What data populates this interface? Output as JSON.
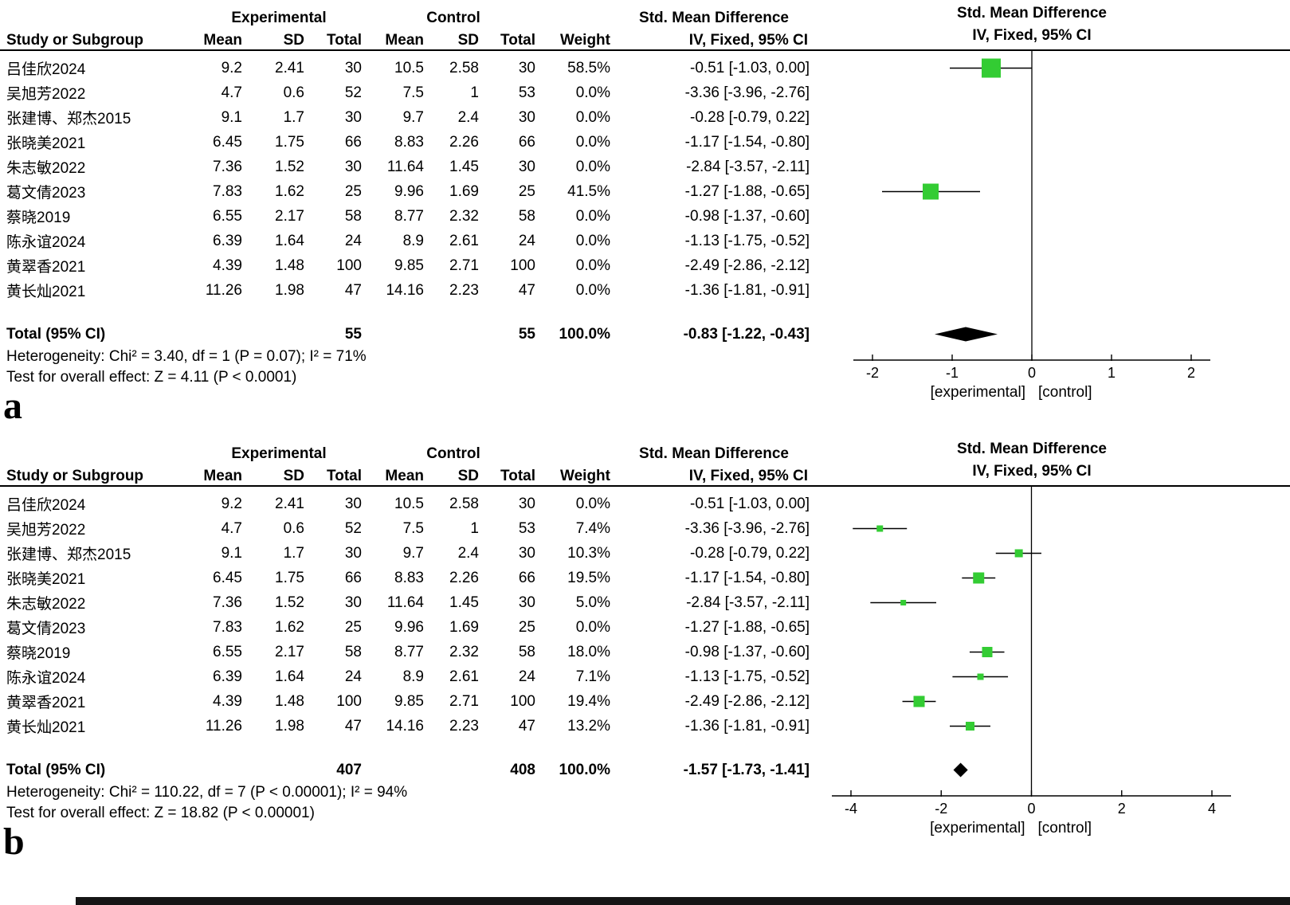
{
  "columns": {
    "study": "Study or Subgroup",
    "experimental": "Experimental",
    "control": "Control",
    "mean": "Mean",
    "sd": "SD",
    "total": "Total",
    "weight": "Weight",
    "smd": "Std. Mean Difference",
    "iv": "IV, Fixed, 95% CI"
  },
  "marker_color": "#33cc33",
  "chart_data": {
    "type": "forest",
    "effect_measure": "Std. Mean Difference",
    "model": "IV, Fixed, 95% CI",
    "panels": [
      {
        "panel_label": "a",
        "xlim": [
          -2.5,
          2.5
        ],
        "studies": [
          {
            "name": "吕佳欣2024",
            "exp_mean": "9.2",
            "exp_sd": "2.41",
            "exp_total": "30",
            "ctl_mean": "10.5",
            "ctl_sd": "2.58",
            "ctl_total": "30",
            "weight": "58.5%",
            "weight_pct": 58.5,
            "ci_text": "-0.51 [-1.03, 0.00]",
            "est": -0.51,
            "lo": -1.03,
            "hi": 0.0
          },
          {
            "name": "吴旭芳2022",
            "exp_mean": "4.7",
            "exp_sd": "0.6",
            "exp_total": "52",
            "ctl_mean": "7.5",
            "ctl_sd": "1",
            "ctl_total": "53",
            "weight": "0.0%",
            "weight_pct": 0,
            "ci_text": "-3.36 [-3.96, -2.76]",
            "est": -3.36,
            "lo": -3.96,
            "hi": -2.76
          },
          {
            "name": "张建博、郑杰2015",
            "exp_mean": "9.1",
            "exp_sd": "1.7",
            "exp_total": "30",
            "ctl_mean": "9.7",
            "ctl_sd": "2.4",
            "ctl_total": "30",
            "weight": "0.0%",
            "weight_pct": 0,
            "ci_text": "-0.28 [-0.79, 0.22]",
            "est": -0.28,
            "lo": -0.79,
            "hi": 0.22
          },
          {
            "name": "张晓美2021",
            "exp_mean": "6.45",
            "exp_sd": "1.75",
            "exp_total": "66",
            "ctl_mean": "8.83",
            "ctl_sd": "2.26",
            "ctl_total": "66",
            "weight": "0.0%",
            "weight_pct": 0,
            "ci_text": "-1.17 [-1.54, -0.80]",
            "est": -1.17,
            "lo": -1.54,
            "hi": -0.8
          },
          {
            "name": "朱志敏2022",
            "exp_mean": "7.36",
            "exp_sd": "1.52",
            "exp_total": "30",
            "ctl_mean": "11.64",
            "ctl_sd": "1.45",
            "ctl_total": "30",
            "weight": "0.0%",
            "weight_pct": 0,
            "ci_text": "-2.84 [-3.57, -2.11]",
            "est": -2.84,
            "lo": -3.57,
            "hi": -2.11
          },
          {
            "name": "葛文倩2023",
            "exp_mean": "7.83",
            "exp_sd": "1.62",
            "exp_total": "25",
            "ctl_mean": "9.96",
            "ctl_sd": "1.69",
            "ctl_total": "25",
            "weight": "41.5%",
            "weight_pct": 41.5,
            "ci_text": "-1.27 [-1.88, -0.65]",
            "est": -1.27,
            "lo": -1.88,
            "hi": -0.65
          },
          {
            "name": "蔡晓2019",
            "exp_mean": "6.55",
            "exp_sd": "2.17",
            "exp_total": "58",
            "ctl_mean": "8.77",
            "ctl_sd": "2.32",
            "ctl_total": "58",
            "weight": "0.0%",
            "weight_pct": 0,
            "ci_text": "-0.98 [-1.37, -0.60]",
            "est": -0.98,
            "lo": -1.37,
            "hi": -0.6
          },
          {
            "name": "陈永谊2024",
            "exp_mean": "6.39",
            "exp_sd": "1.64",
            "exp_total": "24",
            "ctl_mean": "8.9",
            "ctl_sd": "2.61",
            "ctl_total": "24",
            "weight": "0.0%",
            "weight_pct": 0,
            "ci_text": "-1.13 [-1.75, -0.52]",
            "est": -1.13,
            "lo": -1.75,
            "hi": -0.52
          },
          {
            "name": "黄翠香2021",
            "exp_mean": "4.39",
            "exp_sd": "1.48",
            "exp_total": "100",
            "ctl_mean": "9.85",
            "ctl_sd": "2.71",
            "ctl_total": "100",
            "weight": "0.0%",
            "weight_pct": 0,
            "ci_text": "-2.49 [-2.86, -2.12]",
            "est": -2.49,
            "lo": -2.86,
            "hi": -2.12
          },
          {
            "name": "黄长灿2021",
            "exp_mean": "11.26",
            "exp_sd": "1.98",
            "exp_total": "47",
            "ctl_mean": "14.16",
            "ctl_sd": "2.23",
            "ctl_total": "47",
            "weight": "0.0%",
            "weight_pct": 0,
            "ci_text": "-1.36 [-1.81, -0.91]",
            "est": -1.36,
            "lo": -1.81,
            "hi": -0.91
          }
        ],
        "total": {
          "label": "Total (95% CI)",
          "exp_total": "55",
          "ctl_total": "55",
          "weight": "100.0%",
          "ci_text": "-0.83 [-1.22, -0.43]",
          "est": -0.83,
          "lo": -1.22,
          "hi": -0.43
        },
        "heterogeneity": "Heterogeneity: Chi² = 3.40, df = 1 (P = 0.07); I² = 71%",
        "overall_effect": "Test for overall effect: Z = 4.11 (P < 0.0001)",
        "axis": {
          "ticks": [
            -2,
            -1,
            0,
            1,
            2
          ],
          "caption_left": "[experimental]",
          "caption_right": "[control]"
        }
      },
      {
        "panel_label": "b",
        "xlim": [
          -4.5,
          4.5
        ],
        "studies": [
          {
            "name": "吕佳欣2024",
            "exp_mean": "9.2",
            "exp_sd": "2.41",
            "exp_total": "30",
            "ctl_mean": "10.5",
            "ctl_sd": "2.58",
            "ctl_total": "30",
            "weight": "0.0%",
            "weight_pct": 0,
            "ci_text": "-0.51 [-1.03, 0.00]",
            "est": -0.51,
            "lo": -1.03,
            "hi": 0.0
          },
          {
            "name": "吴旭芳2022",
            "exp_mean": "4.7",
            "exp_sd": "0.6",
            "exp_total": "52",
            "ctl_mean": "7.5",
            "ctl_sd": "1",
            "ctl_total": "53",
            "weight": "7.4%",
            "weight_pct": 7.4,
            "ci_text": "-3.36 [-3.96, -2.76]",
            "est": -3.36,
            "lo": -3.96,
            "hi": -2.76
          },
          {
            "name": "张建博、郑杰2015",
            "exp_mean": "9.1",
            "exp_sd": "1.7",
            "exp_total": "30",
            "ctl_mean": "9.7",
            "ctl_sd": "2.4",
            "ctl_total": "30",
            "weight": "10.3%",
            "weight_pct": 10.3,
            "ci_text": "-0.28 [-0.79, 0.22]",
            "est": -0.28,
            "lo": -0.79,
            "hi": 0.22
          },
          {
            "name": "张晓美2021",
            "exp_mean": "6.45",
            "exp_sd": "1.75",
            "exp_total": "66",
            "ctl_mean": "8.83",
            "ctl_sd": "2.26",
            "ctl_total": "66",
            "weight": "19.5%",
            "weight_pct": 19.5,
            "ci_text": "-1.17 [-1.54, -0.80]",
            "est": -1.17,
            "lo": -1.54,
            "hi": -0.8
          },
          {
            "name": "朱志敏2022",
            "exp_mean": "7.36",
            "exp_sd": "1.52",
            "exp_total": "30",
            "ctl_mean": "11.64",
            "ctl_sd": "1.45",
            "ctl_total": "30",
            "weight": "5.0%",
            "weight_pct": 5.0,
            "ci_text": "-2.84 [-3.57, -2.11]",
            "est": -2.84,
            "lo": -3.57,
            "hi": -2.11
          },
          {
            "name": "葛文倩2023",
            "exp_mean": "7.83",
            "exp_sd": "1.62",
            "exp_total": "25",
            "ctl_mean": "9.96",
            "ctl_sd": "1.69",
            "ctl_total": "25",
            "weight": "0.0%",
            "weight_pct": 0,
            "ci_text": "-1.27 [-1.88, -0.65]",
            "est": -1.27,
            "lo": -1.88,
            "hi": -0.65
          },
          {
            "name": "蔡晓2019",
            "exp_mean": "6.55",
            "exp_sd": "2.17",
            "exp_total": "58",
            "ctl_mean": "8.77",
            "ctl_sd": "2.32",
            "ctl_total": "58",
            "weight": "18.0%",
            "weight_pct": 18.0,
            "ci_text": "-0.98 [-1.37, -0.60]",
            "est": -0.98,
            "lo": -1.37,
            "hi": -0.6
          },
          {
            "name": "陈永谊2024",
            "exp_mean": "6.39",
            "exp_sd": "1.64",
            "exp_total": "24",
            "ctl_mean": "8.9",
            "ctl_sd": "2.61",
            "ctl_total": "24",
            "weight": "7.1%",
            "weight_pct": 7.1,
            "ci_text": "-1.13 [-1.75, -0.52]",
            "est": -1.13,
            "lo": -1.75,
            "hi": -0.52
          },
          {
            "name": "黄翠香2021",
            "exp_mean": "4.39",
            "exp_sd": "1.48",
            "exp_total": "100",
            "ctl_mean": "9.85",
            "ctl_sd": "2.71",
            "ctl_total": "100",
            "weight": "19.4%",
            "weight_pct": 19.4,
            "ci_text": "-2.49 [-2.86, -2.12]",
            "est": -2.49,
            "lo": -2.86,
            "hi": -2.12
          },
          {
            "name": "黄长灿2021",
            "exp_mean": "11.26",
            "exp_sd": "1.98",
            "exp_total": "47",
            "ctl_mean": "14.16",
            "ctl_sd": "2.23",
            "ctl_total": "47",
            "weight": "13.2%",
            "weight_pct": 13.2,
            "ci_text": "-1.36 [-1.81, -0.91]",
            "est": -1.36,
            "lo": -1.81,
            "hi": -0.91
          }
        ],
        "total": {
          "label": "Total (95% CI)",
          "exp_total": "407",
          "ctl_total": "408",
          "weight": "100.0%",
          "ci_text": "-1.57 [-1.73, -1.41]",
          "est": -1.57,
          "lo": -1.73,
          "hi": -1.41
        },
        "heterogeneity": "Heterogeneity: Chi² = 110.22, df = 7 (P < 0.00001); I² = 94%",
        "overall_effect": "Test for overall effect: Z = 18.82 (P < 0.00001)",
        "axis": {
          "ticks": [
            -4,
            -2,
            0,
            2,
            4
          ],
          "caption_left": "[experimental]",
          "caption_right": "[control]"
        }
      }
    ]
  }
}
